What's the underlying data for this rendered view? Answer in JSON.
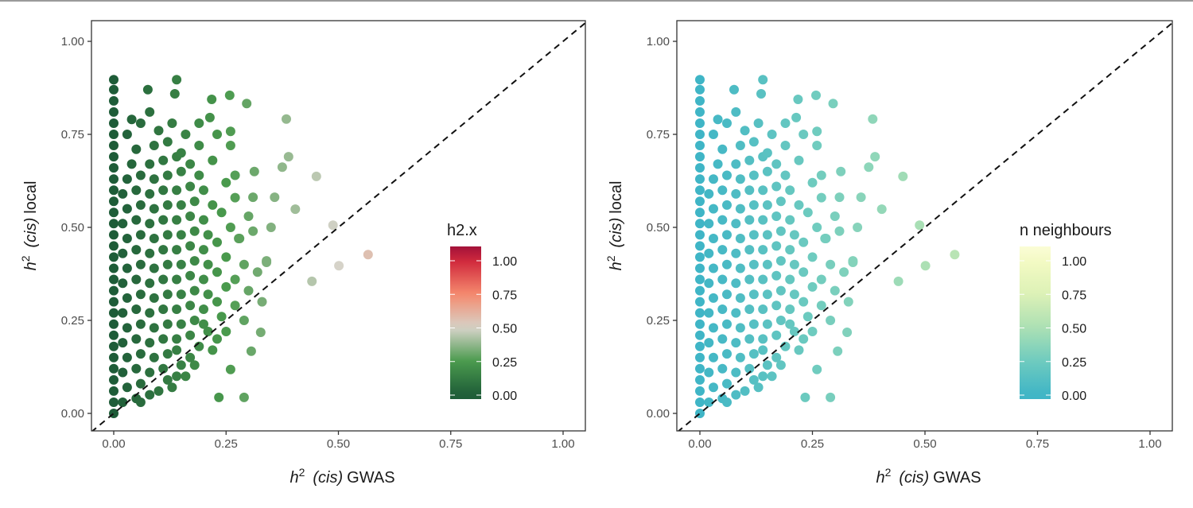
{
  "chart_data": {
    "type": "scatter",
    "xlim": [
      -0.05,
      1.05
    ],
    "ylim": [
      -0.05,
      1.05
    ],
    "x_ticks": [
      "0.00",
      "0.25",
      "0.50",
      "0.75",
      "1.00"
    ],
    "y_ticks": [
      "0.00",
      "0.25",
      "0.50",
      "0.75",
      "1.00"
    ],
    "xlabel": {
      "h": "h",
      "sup": "2",
      "cis": "(cis)",
      "rest": "GWAS"
    },
    "ylabel": {
      "h": "h",
      "sup": "2",
      "cis": "(cis)",
      "rest": "local"
    },
    "reference_line": {
      "slope": 1,
      "intercept": 0,
      "style": "dashed"
    },
    "grid": false,
    "legend_placement": "right-inside",
    "panels": [
      {
        "legend_title": "h2.x",
        "legend_ticks": [
          "0.00",
          "0.25",
          "0.50",
          "0.75",
          "1.00"
        ],
        "colorscale": [
          [
            "0",
            "#1e5c38"
          ],
          [
            "0.25",
            "#4a9a4d"
          ],
          [
            "0.5",
            "#d6d3c9"
          ],
          [
            "0.75",
            "#f58a6e"
          ],
          [
            "1",
            "#d0283c"
          ],
          [
            "1.1",
            "#a3123a"
          ]
        ]
      },
      {
        "legend_title": "n neighbours",
        "legend_ticks": [
          "0.00",
          "0.25",
          "0.50",
          "0.75",
          "1.00"
        ],
        "colorscale": [
          [
            "0",
            "#3fb5c6"
          ],
          [
            "0.25",
            "#6ecbbf"
          ],
          [
            "0.5",
            "#ace0b4"
          ],
          [
            "0.75",
            "#dcf1b6"
          ],
          [
            "1",
            "#f4fac4"
          ],
          [
            "1.1",
            "#fbfdd6"
          ]
        ]
      }
    ],
    "points": [
      [
        0,
        0.0
      ],
      [
        0,
        0.03
      ],
      [
        0,
        0.06
      ],
      [
        0,
        0.09
      ],
      [
        0,
        0.12
      ],
      [
        0,
        0.15
      ],
      [
        0,
        0.18
      ],
      [
        0,
        0.21
      ],
      [
        0,
        0.24
      ],
      [
        0,
        0.27
      ],
      [
        0,
        0.3
      ],
      [
        0,
        0.33
      ],
      [
        0,
        0.36
      ],
      [
        0,
        0.39
      ],
      [
        0,
        0.42
      ],
      [
        0,
        0.45
      ],
      [
        0,
        0.48
      ],
      [
        0,
        0.51
      ],
      [
        0,
        0.54
      ],
      [
        0,
        0.57
      ],
      [
        0,
        0.6
      ],
      [
        0,
        0.63
      ],
      [
        0,
        0.66
      ],
      [
        0,
        0.69
      ],
      [
        0,
        0.72
      ],
      [
        0,
        0.75
      ],
      [
        0,
        0.78
      ],
      [
        0,
        0.81
      ],
      [
        0,
        0.84
      ],
      [
        0,
        0.87
      ],
      [
        0,
        0.897
      ],
      [
        0.02,
        0.03
      ],
      [
        0.05,
        0.04
      ],
      [
        0.08,
        0.05
      ],
      [
        0.1,
        0.06
      ],
      [
        0.03,
        0.07
      ],
      [
        0.06,
        0.08
      ],
      [
        0.12,
        0.09
      ],
      [
        0.14,
        0.1
      ],
      [
        0.02,
        0.11
      ],
      [
        0.05,
        0.12
      ],
      [
        0.08,
        0.11
      ],
      [
        0.11,
        0.12
      ],
      [
        0.15,
        0.13
      ],
      [
        0.17,
        0.15
      ],
      [
        0.03,
        0.15
      ],
      [
        0.06,
        0.16
      ],
      [
        0.09,
        0.15
      ],
      [
        0.12,
        0.16
      ],
      [
        0.14,
        0.17
      ],
      [
        0.19,
        0.18
      ],
      [
        0.02,
        0.19
      ],
      [
        0.05,
        0.2
      ],
      [
        0.08,
        0.19
      ],
      [
        0.11,
        0.2
      ],
      [
        0.14,
        0.2
      ],
      [
        0.17,
        0.21
      ],
      [
        0.21,
        0.22
      ],
      [
        0.23,
        0.2
      ],
      [
        0.03,
        0.23
      ],
      [
        0.06,
        0.24
      ],
      [
        0.09,
        0.23
      ],
      [
        0.12,
        0.24
      ],
      [
        0.15,
        0.24
      ],
      [
        0.18,
        0.25
      ],
      [
        0.2,
        0.24
      ],
      [
        0.24,
        0.26
      ],
      [
        0.02,
        0.27
      ],
      [
        0.05,
        0.28
      ],
      [
        0.08,
        0.27
      ],
      [
        0.11,
        0.28
      ],
      [
        0.14,
        0.28
      ],
      [
        0.17,
        0.29
      ],
      [
        0.2,
        0.28
      ],
      [
        0.23,
        0.3
      ],
      [
        0.27,
        0.29
      ],
      [
        0.03,
        0.31
      ],
      [
        0.06,
        0.32
      ],
      [
        0.09,
        0.31
      ],
      [
        0.12,
        0.32
      ],
      [
        0.15,
        0.32
      ],
      [
        0.18,
        0.33
      ],
      [
        0.21,
        0.32
      ],
      [
        0.25,
        0.34
      ],
      [
        0.3,
        0.33
      ],
      [
        0.02,
        0.35
      ],
      [
        0.05,
        0.36
      ],
      [
        0.08,
        0.35
      ],
      [
        0.11,
        0.36
      ],
      [
        0.14,
        0.36
      ],
      [
        0.17,
        0.37
      ],
      [
        0.2,
        0.36
      ],
      [
        0.23,
        0.38
      ],
      [
        0.27,
        0.36
      ],
      [
        0.32,
        0.38
      ],
      [
        0.03,
        0.39
      ],
      [
        0.06,
        0.4
      ],
      [
        0.09,
        0.39
      ],
      [
        0.12,
        0.4
      ],
      [
        0.15,
        0.4
      ],
      [
        0.18,
        0.41
      ],
      [
        0.21,
        0.4
      ],
      [
        0.25,
        0.42
      ],
      [
        0.29,
        0.4
      ],
      [
        0.02,
        0.43
      ],
      [
        0.05,
        0.44
      ],
      [
        0.08,
        0.43
      ],
      [
        0.11,
        0.44
      ],
      [
        0.14,
        0.44
      ],
      [
        0.17,
        0.45
      ],
      [
        0.2,
        0.44
      ],
      [
        0.23,
        0.46
      ],
      [
        0.28,
        0.47
      ],
      [
        0.34,
        0.41
      ],
      [
        0.03,
        0.47
      ],
      [
        0.06,
        0.48
      ],
      [
        0.09,
        0.47
      ],
      [
        0.12,
        0.48
      ],
      [
        0.15,
        0.48
      ],
      [
        0.18,
        0.49
      ],
      [
        0.21,
        0.48
      ],
      [
        0.26,
        0.5
      ],
      [
        0.31,
        0.49
      ],
      [
        0.02,
        0.51
      ],
      [
        0.05,
        0.52
      ],
      [
        0.08,
        0.51
      ],
      [
        0.11,
        0.52
      ],
      [
        0.14,
        0.52
      ],
      [
        0.17,
        0.53
      ],
      [
        0.2,
        0.52
      ],
      [
        0.24,
        0.54
      ],
      [
        0.3,
        0.53
      ],
      [
        0.35,
        0.5
      ],
      [
        0.03,
        0.55
      ],
      [
        0.06,
        0.56
      ],
      [
        0.09,
        0.55
      ],
      [
        0.12,
        0.56
      ],
      [
        0.15,
        0.56
      ],
      [
        0.18,
        0.57
      ],
      [
        0.22,
        0.56
      ],
      [
        0.27,
        0.58
      ],
      [
        0.31,
        0.581
      ],
      [
        0.358,
        0.581
      ],
      [
        0.02,
        0.59
      ],
      [
        0.05,
        0.6
      ],
      [
        0.08,
        0.59
      ],
      [
        0.11,
        0.6
      ],
      [
        0.14,
        0.6
      ],
      [
        0.17,
        0.61
      ],
      [
        0.2,
        0.6
      ],
      [
        0.25,
        0.62
      ],
      [
        0.03,
        0.63
      ],
      [
        0.06,
        0.64
      ],
      [
        0.09,
        0.63
      ],
      [
        0.12,
        0.64
      ],
      [
        0.15,
        0.65
      ],
      [
        0.19,
        0.64
      ],
      [
        0.27,
        0.64
      ],
      [
        0.313,
        0.65
      ],
      [
        0.04,
        0.67
      ],
      [
        0.08,
        0.67
      ],
      [
        0.11,
        0.68
      ],
      [
        0.14,
        0.69
      ],
      [
        0.17,
        0.67
      ],
      [
        0.22,
        0.68
      ],
      [
        0.05,
        0.71
      ],
      [
        0.09,
        0.72
      ],
      [
        0.12,
        0.73
      ],
      [
        0.15,
        0.7
      ],
      [
        0.19,
        0.72
      ],
      [
        0.26,
        0.72
      ],
      [
        0.03,
        0.75
      ],
      [
        0.06,
        0.78
      ],
      [
        0.1,
        0.76
      ],
      [
        0.13,
        0.78
      ],
      [
        0.16,
        0.75
      ],
      [
        0.23,
        0.75
      ],
      [
        0.04,
        0.79
      ],
      [
        0.08,
        0.81
      ],
      [
        0.19,
        0.78
      ],
      [
        0.214,
        0.795
      ],
      [
        0.26,
        0.758
      ],
      [
        0.076,
        0.87
      ],
      [
        0.136,
        0.859
      ],
      [
        0.14,
        0.897
      ],
      [
        0.218,
        0.844
      ],
      [
        0.258,
        0.855
      ],
      [
        0.296,
        0.833
      ],
      [
        0.384,
        0.791
      ],
      [
        0.389,
        0.69
      ],
      [
        0.375,
        0.662
      ],
      [
        0.451,
        0.637
      ],
      [
        0.404,
        0.549
      ],
      [
        0.488,
        0.506
      ],
      [
        0.566,
        0.427
      ],
      [
        0.501,
        0.397
      ],
      [
        0.441,
        0.355
      ],
      [
        0.278,
        0.47
      ],
      [
        0.34,
        0.406
      ],
      [
        0.33,
        0.3
      ],
      [
        0.29,
        0.25
      ],
      [
        0.327,
        0.218
      ],
      [
        0.306,
        0.167
      ],
      [
        0.26,
        0.118
      ],
      [
        0.234,
        0.043
      ],
      [
        0.29,
        0.043
      ],
      [
        0.22,
        0.17
      ],
      [
        0.25,
        0.22
      ],
      [
        0.18,
        0.13
      ],
      [
        0.16,
        0.1
      ],
      [
        0.13,
        0.07
      ],
      [
        0.06,
        0.03
      ]
    ]
  }
}
